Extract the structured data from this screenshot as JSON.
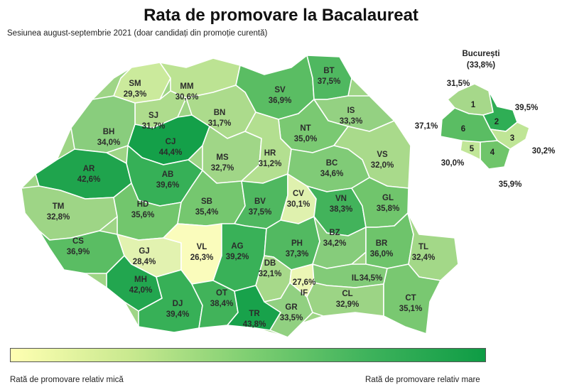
{
  "title": "Rata de promovare la Bacalaureat",
  "subtitle": "Sesiunea august-septembrie 2021 (doar candidați din promoție curentă)",
  "bucharest": {
    "title": "București",
    "total": "(33,8%)",
    "sectors": [
      {
        "name": "1",
        "value": "31,5%",
        "color": "#a6d88a"
      },
      {
        "name": "2",
        "value": "39,5%",
        "color": "#2fae55"
      },
      {
        "name": "3",
        "value": "30,2%",
        "color": "#bfe596"
      },
      {
        "name": "4",
        "value": "35,9%",
        "color": "#6fc56a"
      },
      {
        "name": "5",
        "value": "30,0%",
        "color": "#c1e698"
      },
      {
        "name": "6",
        "value": "37,1%",
        "color": "#5abd63"
      }
    ]
  },
  "counties": [
    {
      "code": "SM",
      "value": "29,3%",
      "color": "#cbea9c"
    },
    {
      "code": "MM",
      "value": "30,6%",
      "color": "#bce393"
    },
    {
      "code": "BT",
      "value": "37,5%",
      "color": "#4fb860"
    },
    {
      "code": "SV",
      "value": "36,9%",
      "color": "#5abd63"
    },
    {
      "code": "BN",
      "value": "31,7%",
      "color": "#acdb8c"
    },
    {
      "code": "SJ",
      "value": "31,7%",
      "color": "#aedc8d"
    },
    {
      "code": "IS",
      "value": "33,3%",
      "color": "#94d182"
    },
    {
      "code": "BH",
      "value": "34,0%",
      "color": "#89cd7d"
    },
    {
      "code": "CJ",
      "value": "44,4%",
      "color": "#14a049"
    },
    {
      "code": "NT",
      "value": "35,0%",
      "color": "#7ac972"
    },
    {
      "code": "MS",
      "value": "32,7%",
      "color": "#a0d687"
    },
    {
      "code": "HR",
      "value": "31,2%",
      "color": "#b3df90"
    },
    {
      "code": "VS",
      "value": "32,0%",
      "color": "#a9da8b"
    },
    {
      "code": "AR",
      "value": "42,6%",
      "color": "#1fa44d"
    },
    {
      "code": "AB",
      "value": "39,6%",
      "color": "#36b057"
    },
    {
      "code": "BC",
      "value": "34,6%",
      "color": "#80cb77"
    },
    {
      "code": "TM",
      "value": "32,8%",
      "color": "#9ed586"
    },
    {
      "code": "HD",
      "value": "35,6%",
      "color": "#72c66d"
    },
    {
      "code": "SB",
      "value": "35,4%",
      "color": "#75c76f"
    },
    {
      "code": "BV",
      "value": "37,5%",
      "color": "#4fb860"
    },
    {
      "code": "CV",
      "value": "30,1%",
      "color": "#dff1ae"
    },
    {
      "code": "VN",
      "value": "38,3%",
      "color": "#42b35b"
    },
    {
      "code": "GL",
      "value": "35,8%",
      "color": "#70c56c"
    },
    {
      "code": "CS",
      "value": "36,9%",
      "color": "#5abd63"
    },
    {
      "code": "GJ",
      "value": "28,4%",
      "color": "#e2f2b0"
    },
    {
      "code": "VL",
      "value": "26,3%",
      "color": "#fafcbc"
    },
    {
      "code": "AG",
      "value": "39,2%",
      "color": "#39b158"
    },
    {
      "code": "PH",
      "value": "37,3%",
      "color": "#52b961"
    },
    {
      "code": "BZ",
      "value": "34,2%",
      "color": "#86cc7b"
    },
    {
      "code": "BR",
      "value": "36,0%",
      "color": "#6ec46b"
    },
    {
      "code": "TL",
      "value": "32,4%",
      "color": "#a3d888"
    },
    {
      "code": "MH",
      "value": "42,0%",
      "color": "#22a64f"
    },
    {
      "code": "DB",
      "value": "32,1%",
      "color": "#a7d98a"
    },
    {
      "code": "IF",
      "value": "27,6%",
      "color": "#ecf6b5"
    },
    {
      "code": "IL",
      "value": "34,5%",
      "color": "#82cb78"
    },
    {
      "code": "DJ",
      "value": "39,4%",
      "color": "#37b057"
    },
    {
      "code": "OT",
      "value": "38,4%",
      "color": "#41b35a"
    },
    {
      "code": "TR",
      "value": "43,8%",
      "color": "#18a24b"
    },
    {
      "code": "GR",
      "value": "33,5%",
      "color": "#91d081"
    },
    {
      "code": "CL",
      "value": "32,9%",
      "color": "#9cd485"
    },
    {
      "code": "CT",
      "value": "35,1%",
      "color": "#79c871"
    }
  ],
  "legend": {
    "low_label": "Rată de promovare relativ mică",
    "high_label": "Rată de promovare relativ mare"
  }
}
